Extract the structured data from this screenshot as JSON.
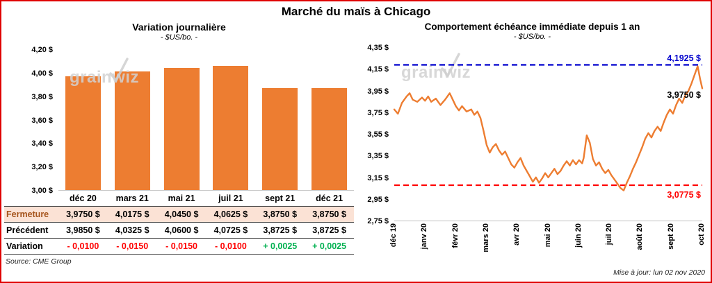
{
  "page": {
    "title": "Marché du maïs à Chicago",
    "source": "Source: CME Group",
    "updated": "Mise à jour: lun 02 nov 2020"
  },
  "watermark": {
    "text": "grainwiz"
  },
  "colors": {
    "accent_orange": "#ED7D31",
    "negative": "#FF0000",
    "positive": "#00B050",
    "resistance_blue": "#0000CD",
    "support_red": "#FF0000",
    "frame_red": "#E00000",
    "highlight_row": "#FBE2D5",
    "highlight_label": "#A5541C"
  },
  "chart_data": [
    {
      "type": "bar",
      "title": "Variation journalière",
      "subtitle": "- $US/bo. -",
      "categories": [
        "déc 20",
        "mars 21",
        "mai 21",
        "juil 21",
        "sept 21",
        "déc 21"
      ],
      "values": [
        3.975,
        4.0175,
        4.045,
        4.0625,
        3.875,
        3.875
      ],
      "ylim": [
        3.0,
        4.2
      ],
      "yticks": [
        {
          "v": 4.2,
          "label": "4,20 $"
        },
        {
          "v": 4.0,
          "label": "4,00 $"
        },
        {
          "v": 3.8,
          "label": "3,80 $"
        },
        {
          "v": 3.6,
          "label": "3,60 $"
        },
        {
          "v": 3.4,
          "label": "3,40 $"
        },
        {
          "v": 3.2,
          "label": "3,20 $"
        },
        {
          "v": 3.0,
          "label": "3,00 $"
        }
      ],
      "bar_color": "#ED7D31",
      "grid": false,
      "legend": "none"
    },
    {
      "type": "line",
      "title": "Comportement échéance immédiate depuis 1 an",
      "subtitle": "- $US/bo. -",
      "x_ticks": [
        "déc 19",
        "janv 20",
        "févr 20",
        "mars 20",
        "avr 20",
        "mai 20",
        "juin 20",
        "juil 20",
        "août 20",
        "sept 20",
        "oct 20"
      ],
      "ylim": [
        2.75,
        4.35
      ],
      "yticks": [
        {
          "v": 4.35,
          "label": "4,35 $"
        },
        {
          "v": 4.15,
          "label": "4,15 $"
        },
        {
          "v": 3.95,
          "label": "3,95 $"
        },
        {
          "v": 3.75,
          "label": "3,75 $"
        },
        {
          "v": 3.55,
          "label": "3,55 $"
        },
        {
          "v": 3.35,
          "label": "3,35 $"
        },
        {
          "v": 3.15,
          "label": "3,15 $"
        },
        {
          "v": 2.95,
          "label": "2,95 $"
        },
        {
          "v": 2.75,
          "label": "2,75 $"
        }
      ],
      "series": [
        {
          "name": "échéance immédiate",
          "color": "#ED7D31",
          "points": [
            [
              0,
              3.78
            ],
            [
              0.012,
              3.74
            ],
            [
              0.025,
              3.84
            ],
            [
              0.04,
              3.9
            ],
            [
              0.05,
              3.93
            ],
            [
              0.06,
              3.87
            ],
            [
              0.075,
              3.85
            ],
            [
              0.09,
              3.89
            ],
            [
              0.1,
              3.86
            ],
            [
              0.11,
              3.9
            ],
            [
              0.12,
              3.85
            ],
            [
              0.135,
              3.88
            ],
            [
              0.15,
              3.82
            ],
            [
              0.165,
              3.87
            ],
            [
              0.18,
              3.93
            ],
            [
              0.19,
              3.87
            ],
            [
              0.2,
              3.81
            ],
            [
              0.21,
              3.77
            ],
            [
              0.22,
              3.81
            ],
            [
              0.235,
              3.76
            ],
            [
              0.25,
              3.78
            ],
            [
              0.26,
              3.73
            ],
            [
              0.27,
              3.76
            ],
            [
              0.28,
              3.7
            ],
            [
              0.29,
              3.58
            ],
            [
              0.3,
              3.45
            ],
            [
              0.31,
              3.38
            ],
            [
              0.32,
              3.43
            ],
            [
              0.33,
              3.46
            ],
            [
              0.34,
              3.4
            ],
            [
              0.35,
              3.36
            ],
            [
              0.36,
              3.39
            ],
            [
              0.37,
              3.33
            ],
            [
              0.38,
              3.27
            ],
            [
              0.39,
              3.24
            ],
            [
              0.4,
              3.29
            ],
            [
              0.41,
              3.33
            ],
            [
              0.42,
              3.26
            ],
            [
              0.43,
              3.21
            ],
            [
              0.44,
              3.16
            ],
            [
              0.45,
              3.11
            ],
            [
              0.46,
              3.15
            ],
            [
              0.47,
              3.1
            ],
            [
              0.48,
              3.14
            ],
            [
              0.49,
              3.19
            ],
            [
              0.5,
              3.15
            ],
            [
              0.51,
              3.19
            ],
            [
              0.52,
              3.23
            ],
            [
              0.53,
              3.18
            ],
            [
              0.54,
              3.21
            ],
            [
              0.55,
              3.26
            ],
            [
              0.56,
              3.3
            ],
            [
              0.57,
              3.26
            ],
            [
              0.58,
              3.31
            ],
            [
              0.59,
              3.27
            ],
            [
              0.6,
              3.31
            ],
            [
              0.61,
              3.28
            ],
            [
              0.615,
              3.33
            ],
            [
              0.625,
              3.54
            ],
            [
              0.635,
              3.47
            ],
            [
              0.645,
              3.32
            ],
            [
              0.655,
              3.26
            ],
            [
              0.665,
              3.29
            ],
            [
              0.675,
              3.23
            ],
            [
              0.685,
              3.19
            ],
            [
              0.695,
              3.22
            ],
            [
              0.705,
              3.17
            ],
            [
              0.715,
              3.13
            ],
            [
              0.725,
              3.09
            ],
            [
              0.735,
              3.05
            ],
            [
              0.745,
              3.03
            ],
            [
              0.755,
              3.1
            ],
            [
              0.765,
              3.16
            ],
            [
              0.775,
              3.23
            ],
            [
              0.785,
              3.29
            ],
            [
              0.795,
              3.36
            ],
            [
              0.805,
              3.43
            ],
            [
              0.815,
              3.51
            ],
            [
              0.825,
              3.56
            ],
            [
              0.835,
              3.52
            ],
            [
              0.845,
              3.58
            ],
            [
              0.855,
              3.62
            ],
            [
              0.865,
              3.58
            ],
            [
              0.875,
              3.66
            ],
            [
              0.885,
              3.73
            ],
            [
              0.895,
              3.78
            ],
            [
              0.905,
              3.74
            ],
            [
              0.915,
              3.82
            ],
            [
              0.925,
              3.88
            ],
            [
              0.935,
              3.84
            ],
            [
              0.945,
              3.91
            ],
            [
              0.955,
              3.95
            ],
            [
              0.965,
              4.02
            ],
            [
              0.975,
              4.1
            ],
            [
              0.985,
              4.18
            ],
            [
              0.993,
              4.06
            ],
            [
              1,
              3.975
            ]
          ]
        }
      ],
      "reference_lines": [
        {
          "value": 4.1925,
          "label": "4,1925 $",
          "color": "#0000CD",
          "style": "dashed",
          "label_dy": -17
        },
        {
          "value": 3.0775,
          "label": "3,0775 $",
          "color": "#FF0000",
          "style": "dashed",
          "label_dy": 6
        }
      ],
      "current_label": {
        "value": 3.975,
        "label": "3,9750 $",
        "color": "#000000",
        "label_dy": 2
      },
      "grid": false,
      "legend": "none"
    }
  ],
  "table": {
    "columns": [
      "déc 20",
      "mars 21",
      "mai 21",
      "juil 21",
      "sept 21",
      "déc 21"
    ],
    "rows": [
      {
        "label": "Fermeture",
        "values": [
          "3,9750 $",
          "4,0175 $",
          "4,0450 $",
          "4,0625 $",
          "3,8750 $",
          "3,8750 $"
        ],
        "highlight": true
      },
      {
        "label": "Précédent",
        "values": [
          "3,9850 $",
          "4,0325 $",
          "4,0600 $",
          "4,0725 $",
          "3,8725 $",
          "3,8725 $"
        ],
        "highlight": false
      },
      {
        "label": "Variation",
        "values": [
          "- 0,0100",
          "- 0,0150",
          "- 0,0150",
          "- 0,0100",
          "+ 0,0025",
          "+ 0,0025"
        ],
        "value_colors": [
          "negative",
          "negative",
          "negative",
          "negative",
          "positive",
          "positive"
        ],
        "highlight": false
      }
    ]
  }
}
